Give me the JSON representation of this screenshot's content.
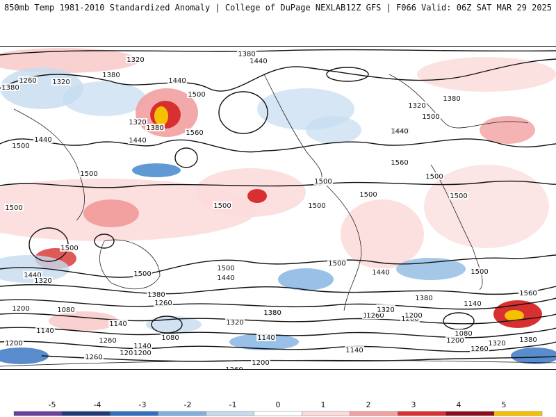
{
  "header": {
    "title_left": "850mb Temp 1981-2010 Standardized Anomaly | College of DuPage NEXLAB",
    "title_right": "12Z GFS | F066 Valid: 06Z SAT MAR 29 2025"
  },
  "contour_labels": [
    "1320",
    "1380",
    "1440",
    "1260",
    "1320",
    "1380",
    "1440",
    "1500",
    "1380",
    "1320",
    "1440",
    "1500",
    "1560",
    "1380",
    "1440",
    "1500",
    "1500",
    "1320",
    "1380",
    "1500",
    "1440",
    "1560",
    "1500",
    "1500",
    "1500",
    "1500",
    "1500",
    "1500",
    "1500",
    "1440",
    "1500",
    "1440",
    "1500",
    "1500",
    "1500",
    "1440",
    "1380",
    "1260",
    "1320",
    "1380",
    "1200",
    "1080",
    "1140",
    "1260",
    "1140",
    "1080",
    "1140",
    "1200",
    "1260",
    "1200",
    "1320",
    "1380",
    "1260",
    "1320",
    "1200",
    "1140",
    "1140",
    "1200",
    "1260",
    "1200",
    "1320",
    "1260",
    "1380",
    "1560",
    "1140",
    "1200",
    "1080",
    "1200",
    "1260",
    "1320",
    "1380",
    "1440"
  ],
  "colorbar": {
    "ticks": [
      "-5",
      "-4",
      "-3",
      "-2",
      "-1",
      "0",
      "1",
      "2",
      "3",
      "4",
      "5"
    ],
    "colors": [
      "#6a3fa0",
      "#1f3a7a",
      "#2f6fc0",
      "#7fb0e0",
      "#c5dcf0",
      "#ffffff",
      "#fbdada",
      "#f2a0a0",
      "#d83030",
      "#8c0c1c",
      "#f5c000"
    ]
  }
}
